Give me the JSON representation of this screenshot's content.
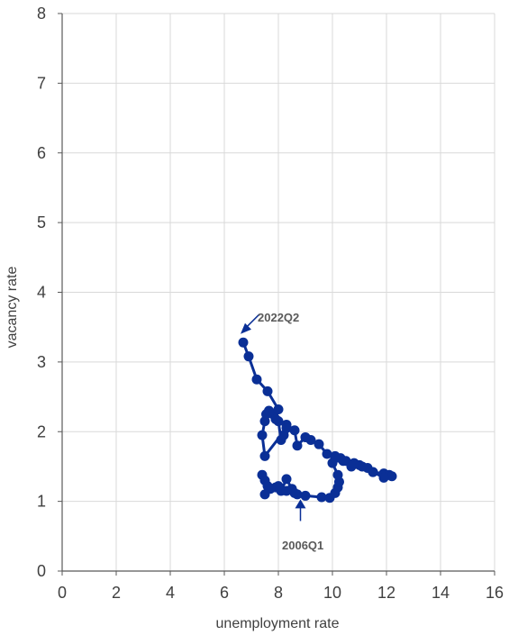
{
  "chart_data": {
    "type": "scatter",
    "xlabel": "unemployment rate",
    "ylabel": "vacancy rate",
    "xlim": [
      0,
      16
    ],
    "ylim": [
      0,
      8
    ],
    "x_ticks": [
      "0",
      "2",
      "4",
      "6",
      "8",
      "10",
      "12",
      "14",
      "16"
    ],
    "y_ticks": [
      "0",
      "1",
      "2",
      "3",
      "4",
      "5",
      "6",
      "7",
      "8"
    ],
    "grid": true,
    "series_color": "#0a2f96",
    "series": [
      {
        "points": [
          [
            8.7,
            1.1
          ],
          [
            9.0,
            1.08
          ],
          [
            9.6,
            1.06
          ],
          [
            9.9,
            1.05
          ],
          [
            10.1,
            1.12
          ],
          [
            10.2,
            1.2
          ],
          [
            10.25,
            1.28
          ],
          [
            10.2,
            1.38
          ],
          [
            10.0,
            1.55
          ],
          [
            10.1,
            1.65
          ],
          [
            10.3,
            1.62
          ],
          [
            10.5,
            1.58
          ],
          [
            10.7,
            1.5
          ],
          [
            11.0,
            1.52
          ],
          [
            11.3,
            1.48
          ],
          [
            11.5,
            1.42
          ],
          [
            11.9,
            1.4
          ],
          [
            12.1,
            1.38
          ],
          [
            12.2,
            1.36
          ],
          [
            11.9,
            1.34
          ],
          [
            11.5,
            1.42
          ],
          [
            11.1,
            1.5
          ],
          [
            10.8,
            1.55
          ],
          [
            10.4,
            1.58
          ],
          [
            10.1,
            1.62
          ],
          [
            9.8,
            1.68
          ],
          [
            9.5,
            1.82
          ],
          [
            9.2,
            1.88
          ],
          [
            9.0,
            1.92
          ],
          [
            8.7,
            1.8
          ],
          [
            8.6,
            2.02
          ],
          [
            8.3,
            2.1
          ],
          [
            8.0,
            2.15
          ],
          [
            8.1,
            1.88
          ],
          [
            8.2,
            1.95
          ],
          [
            8.3,
            2.05
          ],
          [
            7.5,
            1.65
          ],
          [
            7.4,
            1.95
          ],
          [
            7.5,
            2.15
          ],
          [
            7.55,
            2.25
          ],
          [
            7.65,
            2.3
          ],
          [
            7.8,
            2.25
          ],
          [
            7.9,
            2.18
          ],
          [
            8.0,
            2.32
          ],
          [
            7.6,
            2.58
          ],
          [
            7.2,
            2.75
          ],
          [
            6.9,
            3.08
          ],
          [
            6.7,
            3.28
          ]
        ]
      },
      {
        "points": [
          [
            7.4,
            1.38
          ],
          [
            7.5,
            1.3
          ],
          [
            7.6,
            1.22
          ],
          [
            7.9,
            1.2
          ],
          [
            8.1,
            1.15
          ],
          [
            8.3,
            1.32
          ],
          [
            8.5,
            1.18
          ],
          [
            8.6,
            1.12
          ],
          [
            8.3,
            1.15
          ],
          [
            8.0,
            1.22
          ],
          [
            7.7,
            1.18
          ],
          [
            7.5,
            1.1
          ]
        ]
      }
    ],
    "annotations": [
      {
        "text": "2022Q2",
        "x": 6.6,
        "y": 3.35
      },
      {
        "text": "2006Q1",
        "x": 8.75,
        "y": 1.08
      }
    ]
  }
}
